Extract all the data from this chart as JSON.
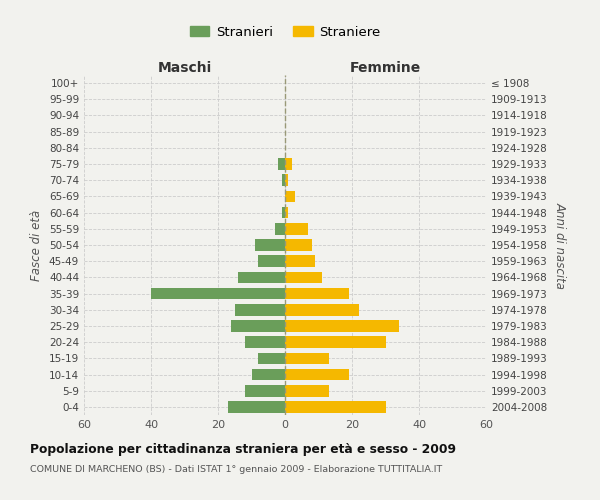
{
  "age_groups": [
    "100+",
    "95-99",
    "90-94",
    "85-89",
    "80-84",
    "75-79",
    "70-74",
    "65-69",
    "60-64",
    "55-59",
    "50-54",
    "45-49",
    "40-44",
    "35-39",
    "30-34",
    "25-29",
    "20-24",
    "15-19",
    "10-14",
    "5-9",
    "0-4"
  ],
  "birth_years": [
    "≤ 1908",
    "1909-1913",
    "1914-1918",
    "1919-1923",
    "1924-1928",
    "1929-1933",
    "1934-1938",
    "1939-1943",
    "1944-1948",
    "1949-1953",
    "1954-1958",
    "1959-1963",
    "1964-1968",
    "1969-1973",
    "1974-1978",
    "1979-1983",
    "1984-1988",
    "1989-1993",
    "1994-1998",
    "1999-2003",
    "2004-2008"
  ],
  "maschi": [
    0,
    0,
    0,
    0,
    0,
    2,
    1,
    0,
    1,
    3,
    9,
    8,
    14,
    40,
    15,
    16,
    12,
    8,
    10,
    12,
    17
  ],
  "femmine": [
    0,
    0,
    0,
    0,
    0,
    2,
    1,
    3,
    1,
    7,
    8,
    9,
    11,
    19,
    22,
    34,
    30,
    13,
    19,
    13,
    30
  ],
  "color_maschi": "#6a9e5a",
  "color_femmine": "#f5b800",
  "title": "Popolazione per cittadinanza straniera per età e sesso - 2009",
  "subtitle": "COMUNE DI MARCHENO (BS) - Dati ISTAT 1° gennaio 2009 - Elaborazione TUTTITALIA.IT",
  "ylabel_left": "Fasce di età",
  "ylabel_right": "Anni di nascita",
  "header_maschi": "Maschi",
  "header_femmine": "Femmine",
  "legend_maschi": "Stranieri",
  "legend_femmine": "Straniere",
  "xlim": 60,
  "xtick_vals": [
    -60,
    -40,
    -20,
    0,
    20,
    40,
    60
  ],
  "xtick_labels": [
    "60",
    "40",
    "20",
    "0",
    "20",
    "40",
    "60"
  ],
  "background_color": "#f2f2ee",
  "grid_color": "#cccccc",
  "center_line_color": "#aaaaaa"
}
